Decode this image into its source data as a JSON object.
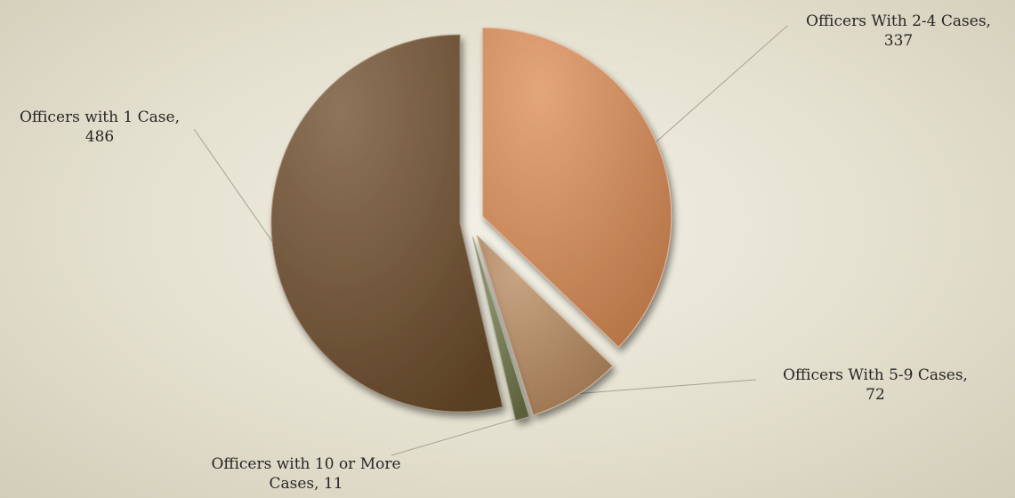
{
  "chart_data": {
    "type": "pie",
    "title": "",
    "start_angle_deg": 0,
    "direction": "clockwise",
    "slices": [
      {
        "label": "Officers With 2-4 Cases",
        "value": 337,
        "color": "#db8c55",
        "exploded": true
      },
      {
        "label": "Officers With 5-9 Cases",
        "value": 72,
        "color": "#b98a5f",
        "exploded": true
      },
      {
        "label": "Officers with 10 or More Cases",
        "value": 11,
        "color": "#6f7548",
        "exploded": true
      },
      {
        "label": "Officers with 1 Case",
        "value": 486,
        "color": "#6e4d2b",
        "exploded": true
      }
    ],
    "data_labels": [
      {
        "line1": "Officers With 2-4 Cases,",
        "line2": "337"
      },
      {
        "line1": "Officers With 5-9 Cases,",
        "line2": "72"
      },
      {
        "line1": "Officers with 10 or More",
        "line2": "Cases, 11"
      },
      {
        "line1": "Officers with 1 Case,",
        "line2": "486"
      }
    ],
    "legend": "none"
  }
}
